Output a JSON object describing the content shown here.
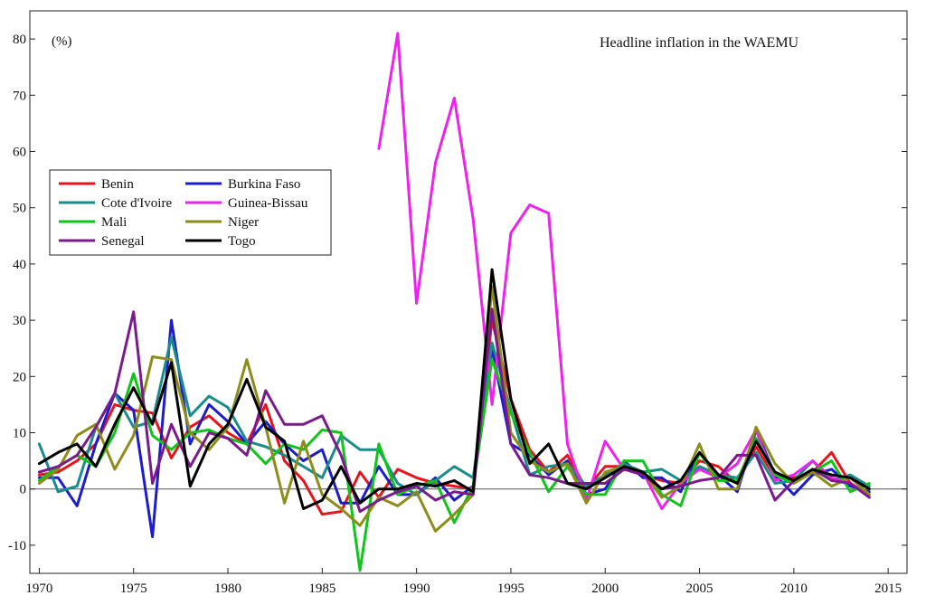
{
  "chart_data": {
    "type": "line",
    "title": "Headline inflation in the WAEMU",
    "ylabel": "(%)",
    "xlabel": "",
    "xlim": [
      1969.5,
      2016
    ],
    "ylim": [
      -15,
      85
    ],
    "x_ticks": [
      1970,
      1975,
      1980,
      1985,
      1990,
      1995,
      2000,
      2005,
      2010,
      2015
    ],
    "y_ticks": [
      -10,
      0,
      10,
      20,
      30,
      40,
      50,
      60,
      70,
      80
    ],
    "grid": false,
    "zero_line": true,
    "legend_position": "upper-left",
    "series": [
      {
        "name": "Benin",
        "color": "#e8141c",
        "x_start": 1970,
        "values": [
          2.5,
          3,
          5,
          8,
          15,
          14,
          13.5,
          5.5,
          11,
          13,
          10,
          8,
          15,
          5,
          1.5,
          -4.5,
          -4,
          3,
          -1.5,
          3.5,
          2,
          1,
          0.5,
          0,
          30,
          16,
          7,
          3,
          6,
          0,
          4,
          4,
          2.5,
          1.5,
          1,
          5,
          4,
          1,
          7.5,
          2,
          2,
          3,
          6.5,
          1,
          -1
        ]
      },
      {
        "name": "Burkina Faso",
        "color": "#1c1ccc",
        "x_start": 1970,
        "values": [
          2,
          2,
          -3,
          8,
          17,
          14,
          -8.5,
          30,
          8,
          15,
          12,
          8,
          12,
          8,
          5,
          7,
          -2.5,
          -2.5,
          4,
          -1,
          -1,
          2,
          -2,
          0.5,
          25,
          8,
          6,
          2.5,
          5,
          -1,
          0,
          5,
          2,
          2,
          -0.5,
          6.5,
          2.5,
          -0.5,
          10.5,
          2.5,
          -1,
          2.5,
          3.5,
          0.5,
          -0.5
        ]
      },
      {
        "name": "Cote d'Ivoire",
        "color": "#1a8c8c",
        "x_start": 1970,
        "values": [
          8,
          -0.5,
          0.5,
          11,
          17,
          11,
          12,
          27,
          13,
          16.5,
          14.5,
          8.5,
          7.5,
          6,
          4,
          2,
          9.5,
          7,
          7,
          1,
          -1,
          1.5,
          4,
          2,
          26,
          14,
          2.5,
          4,
          4.5,
          0.5,
          2.5,
          4.5,
          3,
          3.5,
          1.5,
          4,
          2.5,
          2,
          6.5,
          1,
          1.5,
          5,
          1.5,
          2.5,
          0.5
        ]
      },
      {
        "name": "Guinea-Bissau",
        "color": "#ee22ee",
        "x_start": 1988,
        "values": [
          60.5,
          81,
          33,
          58,
          69.5,
          48,
          15,
          45.5,
          50.5,
          49,
          8,
          -2,
          8.5,
          3.5,
          3,
          -3.5,
          1,
          3.5,
          2,
          4.5,
          10.5,
          1.5,
          2.5,
          5,
          2,
          1,
          -1
        ]
      },
      {
        "name": "Mali",
        "color": "#11c41a",
        "x_start": 1970,
        "values": [
          1.5,
          4,
          6,
          4,
          10,
          20.5,
          9.5,
          7,
          10,
          10.5,
          9,
          8,
          4.5,
          8,
          7,
          10.5,
          10,
          -14.5,
          8,
          -1,
          0.5,
          1.5,
          -6,
          0.5,
          23,
          13.5,
          6.5,
          -0.5,
          4,
          -1,
          -1,
          5,
          5,
          -1,
          -3,
          6.5,
          1.5,
          1.5,
          9,
          2.5,
          1,
          3,
          5,
          -0.5,
          1
        ]
      },
      {
        "name": "Niger",
        "color": "#8c8c1a",
        "x_start": 1970,
        "values": [
          1,
          3.5,
          9.5,
          11.5,
          3.5,
          9.5,
          23.5,
          23,
          10,
          7,
          11,
          23,
          11,
          -2.5,
          8.5,
          -1,
          -3.5,
          -6.5,
          -1.5,
          -3,
          -0.5,
          -7.5,
          -4.5,
          -1,
          36,
          10,
          5,
          3,
          4.5,
          -2.5,
          3,
          4,
          3,
          -1.5,
          0.5,
          8,
          0,
          0,
          11,
          4.5,
          1,
          3,
          0.5,
          2,
          -1
        ]
      },
      {
        "name": "Senegal",
        "color": "#7a1a8c",
        "x_start": 1970,
        "values": [
          3,
          4,
          6,
          11,
          17,
          31.5,
          1,
          11.5,
          4,
          10,
          9,
          6,
          17.5,
          11.5,
          11.5,
          13,
          6,
          -4,
          -2,
          -0.5,
          0.5,
          -2,
          -0.5,
          -1,
          32,
          8,
          2.5,
          2,
          1,
          1,
          1,
          3.5,
          2.5,
          0,
          0.5,
          1.5,
          2,
          6,
          6,
          -2,
          1.5,
          3.5,
          1.5,
          1,
          -1.5
        ]
      },
      {
        "name": "Togo",
        "color": "#000000",
        "x_start": 1970,
        "values": [
          4.5,
          6.5,
          8,
          4,
          11.5,
          18,
          11.5,
          22.5,
          0.5,
          8,
          11.5,
          19.5,
          11,
          8.5,
          -3.5,
          -2,
          4,
          -2.5,
          0,
          0,
          1,
          0.5,
          1.5,
          -0.5,
          39,
          16,
          4.5,
          8,
          1,
          0,
          2,
          4,
          3,
          0,
          1.5,
          6.5,
          2.5,
          1,
          8.5,
          3,
          1.5,
          3.5,
          2.5,
          2,
          0
        ]
      }
    ]
  }
}
